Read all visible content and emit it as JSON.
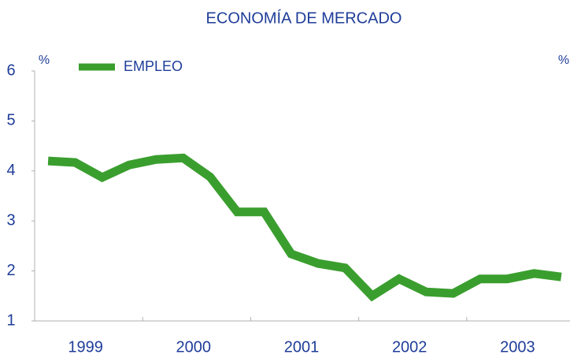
{
  "chart_data": {
    "type": "line",
    "title": "ECONOMÍA DE MERCADO",
    "y_unit_left": "%",
    "y_unit_right": "%",
    "year_labels": [
      "1999",
      "2000",
      "2001",
      "2002",
      "2003"
    ],
    "series": [
      {
        "name": "EMPLEO",
        "color": "#3a9e2e",
        "values": [
          4.2,
          4.17,
          3.87,
          4.12,
          4.23,
          4.26,
          3.88,
          3.18,
          3.18,
          2.34,
          2.15,
          2.06,
          1.5,
          1.84,
          1.58,
          1.55,
          1.84,
          1.84,
          1.95,
          1.88
        ]
      }
    ],
    "ylim": [
      1,
      6
    ],
    "yticks": [
      1,
      2,
      3,
      4,
      5,
      6
    ],
    "grid": false
  }
}
